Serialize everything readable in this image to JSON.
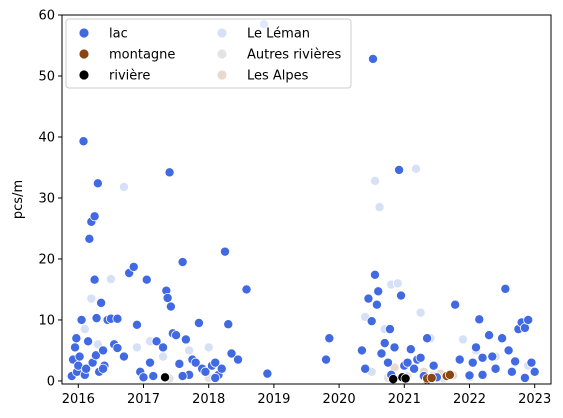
{
  "chart_data": {
    "type": "scatter",
    "ylabel": "pcs/m",
    "xlabel": "",
    "xlim": [
      2015.75,
      2023.25
    ],
    "ylim": [
      -0.5,
      60
    ],
    "x_ticks": [
      2016,
      2017,
      2018,
      2019,
      2020,
      2021,
      2022,
      2023
    ],
    "x_tick_labels": [
      "2016",
      "2017",
      "2018",
      "2019",
      "2020",
      "2021",
      "2022",
      "2023"
    ],
    "y_ticks": [
      0,
      10,
      20,
      30,
      40,
      50,
      60
    ],
    "y_tick_labels": [
      "0",
      "10",
      "20",
      "30",
      "40",
      "50",
      "60"
    ],
    "legend": {
      "placement": "upper-left",
      "columns": 2,
      "entries": [
        {
          "label": "lac",
          "color": "#4169e1"
        },
        {
          "label": "montagne",
          "color": "#8b4513"
        },
        {
          "label": "rivière",
          "color": "#000000"
        },
        {
          "label": "Le Léman",
          "color": "#d6e0f7"
        },
        {
          "label": "Autres rivières",
          "color": "#e3e3e3"
        },
        {
          "label": "Les Alpes",
          "color": "#e9d9cc"
        }
      ]
    },
    "series": [
      {
        "name": "Le Léman",
        "color": "#d6e0f7",
        "points": [
          [
            2016.2,
            13.5
          ],
          [
            2016.5,
            16.7
          ],
          [
            2016.7,
            31.8
          ],
          [
            2016.1,
            8.5
          ],
          [
            2016.3,
            6.0
          ],
          [
            2016.9,
            5.5
          ],
          [
            2017.1,
            6.5
          ],
          [
            2017.3,
            4.0
          ],
          [
            2017.7,
            5.0
          ],
          [
            2018.0,
            5.5
          ],
          [
            2020.4,
            10.5
          ],
          [
            2020.55,
            32.8
          ],
          [
            2020.62,
            28.5
          ],
          [
            2020.7,
            8.5
          ],
          [
            2020.8,
            15.8
          ],
          [
            2020.9,
            16.0
          ],
          [
            2021.18,
            34.8
          ],
          [
            2021.25,
            11.2
          ],
          [
            2021.4,
            7.0
          ],
          [
            2021.9,
            6.8
          ],
          [
            2022.1,
            5.0
          ],
          [
            2022.4,
            4.0
          ],
          [
            2022.7,
            3.0
          ],
          [
            2022.9,
            2.5
          ],
          [
            2020.5,
            1.5
          ],
          [
            2021.5,
            1.0
          ]
        ]
      },
      {
        "name": "Autres rivières",
        "color": "#e3e3e3",
        "points": [
          [
            2017.4,
            0.4
          ],
          [
            2018.0,
            0.5
          ],
          [
            2020.75,
            0.5
          ],
          [
            2021.05,
            0.8
          ],
          [
            2021.45,
            1.0
          ],
          [
            2021.6,
            0.4
          ],
          [
            2022.0,
            0.6
          ]
        ]
      },
      {
        "name": "Les Alpes",
        "color": "#e9d9cc",
        "points": [
          [
            2020.85,
            2.2
          ],
          [
            2021.3,
            1.5
          ],
          [
            2021.45,
            2.3
          ],
          [
            2021.55,
            1.2
          ],
          [
            2021.75,
            0.9
          ]
        ]
      },
      {
        "name": "lac",
        "color": "#4169e1",
        "points": [
          [
            2015.9,
            0.8
          ],
          [
            2015.92,
            3.5
          ],
          [
            2015.95,
            5.5
          ],
          [
            2015.97,
            7.0
          ],
          [
            2015.98,
            1.5
          ],
          [
            2016.0,
            2.5
          ],
          [
            2016.02,
            4.0
          ],
          [
            2016.05,
            10.0
          ],
          [
            2016.08,
            39.3
          ],
          [
            2016.1,
            1.0
          ],
          [
            2016.12,
            2.0
          ],
          [
            2016.15,
            6.5
          ],
          [
            2016.17,
            23.3
          ],
          [
            2016.2,
            26.1
          ],
          [
            2016.22,
            3.0
          ],
          [
            2016.25,
            27.0
          ],
          [
            2016.25,
            16.6
          ],
          [
            2016.27,
            4.2
          ],
          [
            2016.28,
            10.3
          ],
          [
            2016.3,
            32.4
          ],
          [
            2016.32,
            1.5
          ],
          [
            2016.35,
            12.8
          ],
          [
            2016.38,
            5.0
          ],
          [
            2016.4,
            2.5
          ],
          [
            2016.45,
            10.0
          ],
          [
            2016.5,
            10.2
          ],
          [
            2016.55,
            6.0
          ],
          [
            2016.6,
            10.2
          ],
          [
            2016.7,
            4.0
          ],
          [
            2016.78,
            17.7
          ],
          [
            2016.85,
            18.7
          ],
          [
            2016.9,
            9.2
          ],
          [
            2016.95,
            1.5
          ],
          [
            2017.05,
            16.6
          ],
          [
            2017.1,
            3.0
          ],
          [
            2017.2,
            6.5
          ],
          [
            2017.3,
            5.5
          ],
          [
            2017.35,
            14.8
          ],
          [
            2017.37,
            13.6
          ],
          [
            2017.4,
            34.2
          ],
          [
            2017.42,
            12.2
          ],
          [
            2017.45,
            7.8
          ],
          [
            2017.5,
            7.5
          ],
          [
            2017.55,
            2.8
          ],
          [
            2017.6,
            19.5
          ],
          [
            2017.65,
            6.8
          ],
          [
            2017.7,
            1.0
          ],
          [
            2017.75,
            3.5
          ],
          [
            2017.8,
            3.0
          ],
          [
            2017.85,
            9.5
          ],
          [
            2017.9,
            2.0
          ],
          [
            2017.95,
            1.5
          ],
          [
            2018.05,
            2.5
          ],
          [
            2018.1,
            3.0
          ],
          [
            2018.15,
            1.0
          ],
          [
            2018.2,
            2.0
          ],
          [
            2018.25,
            21.2
          ],
          [
            2018.3,
            9.3
          ],
          [
            2018.35,
            4.5
          ],
          [
            2018.45,
            3.5
          ],
          [
            2018.58,
            15.0
          ],
          [
            2018.85,
            58.5
          ],
          [
            2018.9,
            1.2
          ],
          [
            2019.8,
            3.5
          ],
          [
            2019.85,
            7.0
          ],
          [
            2020.35,
            5.0
          ],
          [
            2020.4,
            2.0
          ],
          [
            2020.45,
            13.5
          ],
          [
            2020.5,
            9.8
          ],
          [
            2020.52,
            52.8
          ],
          [
            2020.55,
            17.4
          ],
          [
            2020.58,
            12.5
          ],
          [
            2020.6,
            14.7
          ],
          [
            2020.65,
            4.5
          ],
          [
            2020.7,
            6.2
          ],
          [
            2020.75,
            3.0
          ],
          [
            2020.78,
            8.5
          ],
          [
            2020.85,
            5.5
          ],
          [
            2020.92,
            34.6
          ],
          [
            2020.95,
            14.0
          ],
          [
            2021.0,
            2.5
          ],
          [
            2021.05,
            3.0
          ],
          [
            2021.1,
            5.2
          ],
          [
            2021.15,
            2.0
          ],
          [
            2021.2,
            3.5
          ],
          [
            2021.25,
            3.8
          ],
          [
            2021.35,
            7.0
          ],
          [
            2021.45,
            2.5
          ],
          [
            2021.5,
            0.6
          ],
          [
            2021.78,
            12.5
          ],
          [
            2021.85,
            3.5
          ],
          [
            2022.0,
            0.9
          ],
          [
            2022.05,
            3.0
          ],
          [
            2022.1,
            5.5
          ],
          [
            2022.15,
            10.1
          ],
          [
            2022.2,
            3.8
          ],
          [
            2022.3,
            7.5
          ],
          [
            2022.35,
            4.0
          ],
          [
            2022.4,
            2.0
          ],
          [
            2022.5,
            7.0
          ],
          [
            2022.55,
            15.1
          ],
          [
            2022.6,
            5.0
          ],
          [
            2022.7,
            3.2
          ],
          [
            2022.75,
            8.5
          ],
          [
            2022.8,
            9.6
          ],
          [
            2022.85,
            8.7
          ],
          [
            2022.9,
            10.0
          ],
          [
            2022.95,
            3.0
          ],
          [
            2023.0,
            1.5
          ],
          [
            2022.65,
            1.5
          ],
          [
            2016.38,
            2.0
          ],
          [
            2016.6,
            5.4
          ],
          [
            2017.0,
            0.6
          ],
          [
            2017.15,
            0.8
          ],
          [
            2017.6,
            0.8
          ],
          [
            2018.1,
            0.5
          ],
          [
            2020.8,
            1.0
          ],
          [
            2021.3,
            0.8
          ],
          [
            2022.2,
            1.0
          ],
          [
            2022.85,
            0.5
          ]
        ]
      },
      {
        "name": "rivière",
        "color": "#000000",
        "points": [
          [
            2017.33,
            0.6
          ],
          [
            2020.83,
            0.3
          ],
          [
            2020.97,
            0.6
          ],
          [
            2021.02,
            0.4
          ],
          [
            2021.35,
            0.2
          ]
        ]
      },
      {
        "name": "montagne",
        "color": "#8b4513",
        "points": [
          [
            2021.35,
            0.4
          ],
          [
            2021.42,
            0.5
          ],
          [
            2021.65,
            0.8
          ],
          [
            2021.7,
            1.0
          ]
        ]
      }
    ]
  }
}
